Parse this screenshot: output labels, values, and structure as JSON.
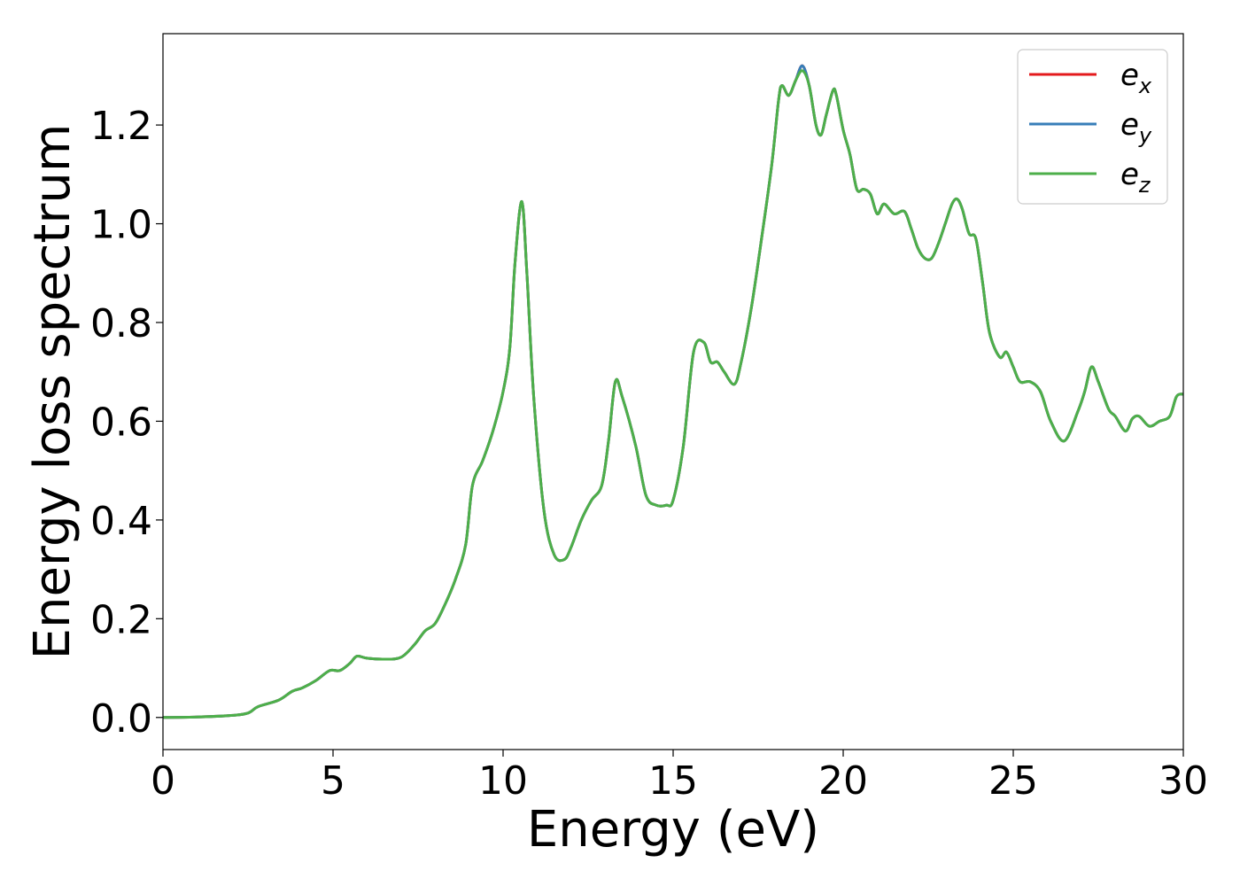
{
  "chart_data": {
    "type": "line",
    "title": "",
    "xlabel": "Energy (eV)",
    "ylabel": "Energy loss spectrum",
    "xlim": [
      0,
      30
    ],
    "ylim": [
      -0.065,
      1.385
    ],
    "xticks": [
      0,
      5,
      10,
      15,
      20,
      25,
      30
    ],
    "xtick_labels": [
      "0",
      "5",
      "10",
      "15",
      "20",
      "25",
      "30"
    ],
    "yticks": [
      0.0,
      0.2,
      0.4,
      0.6,
      0.8,
      1.0,
      1.2
    ],
    "ytick_labels": [
      "0.0",
      "0.2",
      "0.4",
      "0.6",
      "0.8",
      "1.0",
      "1.2"
    ],
    "grid": false,
    "legend_position": "top-right",
    "series": [
      {
        "name": "e_x",
        "legend_main": "e",
        "legend_sub": "x",
        "color": "#e41a1c",
        "x": [
          0,
          1,
          2,
          2.5,
          2.8,
          3.4,
          3.8,
          4.1,
          4.5,
          4.9,
          5.2,
          5.5,
          5.7,
          6.0,
          6.5,
          7.0,
          7.4,
          7.7,
          8.0,
          8.3,
          8.6,
          8.9,
          9.1,
          9.4,
          9.7,
          10.0,
          10.2,
          10.35,
          10.55,
          10.7,
          10.9,
          11.2,
          11.5,
          11.8,
          12.0,
          12.3,
          12.6,
          12.9,
          13.1,
          13.3,
          13.5,
          13.9,
          14.2,
          14.5,
          14.8,
          15.0,
          15.3,
          15.6,
          15.9,
          16.1,
          16.3,
          16.5,
          16.8,
          17.0,
          17.3,
          17.6,
          17.9,
          18.1,
          18.2,
          18.4,
          18.6,
          18.8,
          19.0,
          19.2,
          19.35,
          19.5,
          19.7,
          19.8,
          20.0,
          20.2,
          20.4,
          20.6,
          20.8,
          21.0,
          21.2,
          21.5,
          21.8,
          22.0,
          22.2,
          22.4,
          22.6,
          22.8,
          23.0,
          23.2,
          23.35,
          23.5,
          23.7,
          23.9,
          24.1,
          24.3,
          24.6,
          24.8,
          25.0,
          25.2,
          25.5,
          25.8,
          26.1,
          26.5,
          26.9,
          27.1,
          27.3,
          27.5,
          27.8,
          28.0,
          28.3,
          28.5,
          28.7,
          29.0,
          29.3,
          29.6,
          29.8,
          30.0
        ],
        "y": [
          0.0,
          0.001,
          0.004,
          0.009,
          0.022,
          0.035,
          0.053,
          0.06,
          0.075,
          0.095,
          0.095,
          0.11,
          0.124,
          0.12,
          0.118,
          0.122,
          0.148,
          0.175,
          0.19,
          0.23,
          0.28,
          0.35,
          0.47,
          0.52,
          0.58,
          0.66,
          0.75,
          0.92,
          1.045,
          0.9,
          0.65,
          0.42,
          0.33,
          0.32,
          0.345,
          0.4,
          0.44,
          0.47,
          0.56,
          0.68,
          0.65,
          0.55,
          0.45,
          0.43,
          0.43,
          0.44,
          0.55,
          0.74,
          0.76,
          0.72,
          0.72,
          0.7,
          0.675,
          0.72,
          0.83,
          0.97,
          1.12,
          1.25,
          1.28,
          1.26,
          1.29,
          1.32,
          1.28,
          1.2,
          1.18,
          1.22,
          1.27,
          1.26,
          1.19,
          1.14,
          1.07,
          1.07,
          1.06,
          1.02,
          1.04,
          1.02,
          1.025,
          0.99,
          0.95,
          0.93,
          0.93,
          0.96,
          1.0,
          1.04,
          1.05,
          1.03,
          0.98,
          0.97,
          0.88,
          0.78,
          0.73,
          0.74,
          0.71,
          0.68,
          0.68,
          0.66,
          0.6,
          0.56,
          0.62,
          0.66,
          0.71,
          0.68,
          0.625,
          0.61,
          0.58,
          0.605,
          0.61,
          0.59,
          0.6,
          0.61,
          0.65,
          0.655
        ]
      },
      {
        "name": "e_y",
        "legend_main": "e",
        "legend_sub": "y",
        "color": "#377eb8",
        "x": [
          0,
          1,
          2,
          2.5,
          2.8,
          3.4,
          3.8,
          4.1,
          4.5,
          4.9,
          5.2,
          5.5,
          5.7,
          6.0,
          6.5,
          7.0,
          7.4,
          7.7,
          8.0,
          8.3,
          8.6,
          8.9,
          9.1,
          9.4,
          9.7,
          10.0,
          10.2,
          10.35,
          10.55,
          10.7,
          10.9,
          11.2,
          11.5,
          11.8,
          12.0,
          12.3,
          12.6,
          12.9,
          13.1,
          13.3,
          13.5,
          13.9,
          14.2,
          14.5,
          14.8,
          15.0,
          15.3,
          15.6,
          15.9,
          16.1,
          16.3,
          16.5,
          16.8,
          17.0,
          17.3,
          17.6,
          17.9,
          18.1,
          18.2,
          18.4,
          18.6,
          18.8,
          19.0,
          19.2,
          19.35,
          19.5,
          19.7,
          19.8,
          20.0,
          20.2,
          20.4,
          20.6,
          20.8,
          21.0,
          21.2,
          21.5,
          21.8,
          22.0,
          22.2,
          22.4,
          22.6,
          22.8,
          23.0,
          23.2,
          23.35,
          23.5,
          23.7,
          23.9,
          24.1,
          24.3,
          24.6,
          24.8,
          25.0,
          25.2,
          25.5,
          25.8,
          26.1,
          26.5,
          26.9,
          27.1,
          27.3,
          27.5,
          27.8,
          28.0,
          28.3,
          28.5,
          28.7,
          29.0,
          29.3,
          29.6,
          29.8,
          30.0
        ],
        "y": [
          0.0,
          0.001,
          0.004,
          0.009,
          0.022,
          0.035,
          0.053,
          0.06,
          0.075,
          0.095,
          0.095,
          0.11,
          0.124,
          0.12,
          0.118,
          0.122,
          0.148,
          0.175,
          0.19,
          0.23,
          0.28,
          0.35,
          0.47,
          0.52,
          0.58,
          0.66,
          0.75,
          0.92,
          1.045,
          0.9,
          0.65,
          0.42,
          0.33,
          0.32,
          0.345,
          0.4,
          0.44,
          0.47,
          0.56,
          0.68,
          0.65,
          0.55,
          0.45,
          0.43,
          0.43,
          0.44,
          0.55,
          0.74,
          0.76,
          0.72,
          0.72,
          0.7,
          0.675,
          0.72,
          0.83,
          0.97,
          1.12,
          1.25,
          1.28,
          1.26,
          1.29,
          1.32,
          1.28,
          1.2,
          1.18,
          1.22,
          1.27,
          1.26,
          1.19,
          1.14,
          1.07,
          1.07,
          1.06,
          1.02,
          1.04,
          1.02,
          1.025,
          0.99,
          0.95,
          0.93,
          0.93,
          0.96,
          1.0,
          1.04,
          1.05,
          1.03,
          0.98,
          0.97,
          0.88,
          0.78,
          0.73,
          0.74,
          0.71,
          0.68,
          0.68,
          0.66,
          0.6,
          0.56,
          0.62,
          0.66,
          0.71,
          0.68,
          0.625,
          0.61,
          0.58,
          0.605,
          0.61,
          0.59,
          0.6,
          0.61,
          0.65,
          0.655
        ]
      },
      {
        "name": "e_z",
        "legend_main": "e",
        "legend_sub": "z",
        "color": "#4daf4a",
        "x": [
          0,
          1,
          2,
          2.5,
          2.8,
          3.4,
          3.8,
          4.1,
          4.5,
          4.9,
          5.2,
          5.5,
          5.7,
          6.0,
          6.5,
          7.0,
          7.4,
          7.7,
          8.0,
          8.3,
          8.6,
          8.9,
          9.1,
          9.4,
          9.7,
          10.0,
          10.2,
          10.35,
          10.55,
          10.7,
          10.9,
          11.2,
          11.5,
          11.8,
          12.0,
          12.3,
          12.6,
          12.9,
          13.1,
          13.3,
          13.5,
          13.9,
          14.2,
          14.5,
          14.8,
          15.0,
          15.3,
          15.6,
          15.9,
          16.1,
          16.3,
          16.5,
          16.8,
          17.0,
          17.3,
          17.6,
          17.9,
          18.1,
          18.2,
          18.4,
          18.6,
          18.8,
          19.0,
          19.2,
          19.35,
          19.5,
          19.7,
          19.8,
          20.0,
          20.2,
          20.4,
          20.6,
          20.8,
          21.0,
          21.2,
          21.5,
          21.8,
          22.0,
          22.2,
          22.4,
          22.6,
          22.8,
          23.0,
          23.2,
          23.35,
          23.5,
          23.7,
          23.9,
          24.1,
          24.3,
          24.6,
          24.8,
          25.0,
          25.2,
          25.5,
          25.8,
          26.1,
          26.5,
          26.9,
          27.1,
          27.3,
          27.5,
          27.8,
          28.0,
          28.3,
          28.5,
          28.7,
          29.0,
          29.3,
          29.6,
          29.8,
          30.0
        ],
        "y": [
          0.0,
          0.001,
          0.004,
          0.009,
          0.022,
          0.035,
          0.053,
          0.06,
          0.075,
          0.095,
          0.095,
          0.11,
          0.124,
          0.12,
          0.118,
          0.122,
          0.148,
          0.175,
          0.19,
          0.23,
          0.28,
          0.35,
          0.47,
          0.52,
          0.58,
          0.66,
          0.75,
          0.92,
          1.045,
          0.9,
          0.65,
          0.42,
          0.33,
          0.32,
          0.345,
          0.4,
          0.44,
          0.47,
          0.56,
          0.68,
          0.65,
          0.55,
          0.45,
          0.43,
          0.43,
          0.44,
          0.55,
          0.74,
          0.76,
          0.72,
          0.72,
          0.7,
          0.675,
          0.72,
          0.83,
          0.97,
          1.12,
          1.25,
          1.28,
          1.26,
          1.29,
          1.31,
          1.28,
          1.2,
          1.18,
          1.22,
          1.27,
          1.26,
          1.19,
          1.14,
          1.07,
          1.07,
          1.06,
          1.02,
          1.04,
          1.02,
          1.025,
          0.99,
          0.95,
          0.93,
          0.93,
          0.96,
          1.0,
          1.04,
          1.05,
          1.03,
          0.98,
          0.97,
          0.88,
          0.78,
          0.73,
          0.74,
          0.71,
          0.68,
          0.68,
          0.66,
          0.6,
          0.56,
          0.62,
          0.66,
          0.71,
          0.68,
          0.625,
          0.61,
          0.58,
          0.605,
          0.61,
          0.59,
          0.6,
          0.61,
          0.65,
          0.655
        ]
      }
    ]
  }
}
